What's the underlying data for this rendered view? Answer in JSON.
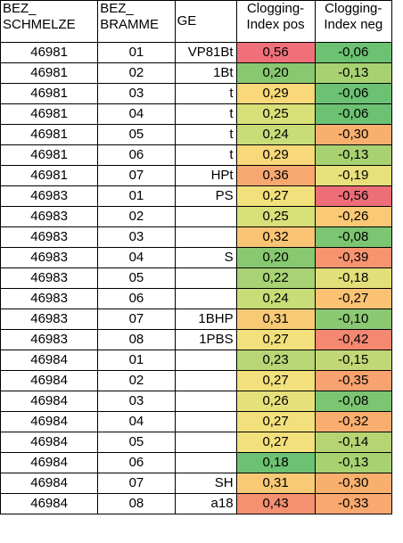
{
  "headers": {
    "schmelze": [
      "BEZ_",
      "SCHMELZE"
    ],
    "bramme": [
      "BEZ_",
      "BRAMME"
    ],
    "ge": "GE",
    "pos": [
      "Clogging-",
      "Index pos"
    ],
    "neg": [
      "Clogging-",
      "Index neg"
    ]
  },
  "rows": [
    {
      "schmelze": "46981",
      "bramme": "01",
      "ge": "VP81Bt",
      "pos": "0,56",
      "neg": "-0,06",
      "pos_color": "#f0707a",
      "neg_color": "#6cc172"
    },
    {
      "schmelze": "46981",
      "bramme": "02",
      "ge": "1Bt",
      "pos": "0,20",
      "neg": "-0,13",
      "pos_color": "#88c870",
      "neg_color": "#a8d272"
    },
    {
      "schmelze": "46981",
      "bramme": "03",
      "ge": "t",
      "pos": "0,29",
      "neg": "-0,06",
      "pos_color": "#f8d878",
      "neg_color": "#6cc172"
    },
    {
      "schmelze": "46981",
      "bramme": "04",
      "ge": "t",
      "pos": "0,25",
      "neg": "-0,06",
      "pos_color": "#d8e07a",
      "neg_color": "#6cc172"
    },
    {
      "schmelze": "46981",
      "bramme": "05",
      "ge": "t",
      "pos": "0,24",
      "neg": "-0,30",
      "pos_color": "#c8dc78",
      "neg_color": "#f9b06e"
    },
    {
      "schmelze": "46981",
      "bramme": "06",
      "ge": "t",
      "pos": "0,29",
      "neg": "-0,13",
      "pos_color": "#f8d878",
      "neg_color": "#a8d272"
    },
    {
      "schmelze": "46981",
      "bramme": "07",
      "ge": "HPt",
      "pos": "0,36",
      "neg": "-0,19",
      "pos_color": "#f7a870",
      "neg_color": "#e8e07a"
    },
    {
      "schmelze": "46983",
      "bramme": "01",
      "ge": "PS",
      "pos": "0,27",
      "neg": "-0,56",
      "pos_color": "#f2e07c",
      "neg_color": "#ee6e78"
    },
    {
      "schmelze": "46983",
      "bramme": "02",
      "ge": "",
      "pos": "0,25",
      "neg": "-0,26",
      "pos_color": "#d8e07a",
      "neg_color": "#fbc876"
    },
    {
      "schmelze": "46983",
      "bramme": "03",
      "ge": "",
      "pos": "0,32",
      "neg": "-0,08",
      "pos_color": "#f9c474",
      "neg_color": "#7cc572"
    },
    {
      "schmelze": "46983",
      "bramme": "04",
      "ge": "S",
      "pos": "0,20",
      "neg": "-0,39",
      "pos_color": "#88c870",
      "neg_color": "#f79470"
    },
    {
      "schmelze": "46983",
      "bramme": "05",
      "ge": "",
      "pos": "0,22",
      "neg": "-0,18",
      "pos_color": "#a8d274",
      "neg_color": "#e2df7a"
    },
    {
      "schmelze": "46983",
      "bramme": "06",
      "ge": "",
      "pos": "0,24",
      "neg": "-0,27",
      "pos_color": "#c8dc78",
      "neg_color": "#fbc274"
    },
    {
      "schmelze": "46983",
      "bramme": "07",
      "ge": "1BHP",
      "pos": "0,31",
      "neg": "-0,10",
      "pos_color": "#f9ca76",
      "neg_color": "#8ac872"
    },
    {
      "schmelze": "46983",
      "bramme": "08",
      "ge": "1PBS",
      "pos": "0,27",
      "neg": "-0,42",
      "pos_color": "#f2e07c",
      "neg_color": "#f48870"
    },
    {
      "schmelze": "46984",
      "bramme": "01",
      "ge": "",
      "pos": "0,23",
      "neg": "-0,15",
      "pos_color": "#b8d676",
      "neg_color": "#c2d876"
    },
    {
      "schmelze": "46984",
      "bramme": "02",
      "ge": "",
      "pos": "0,27",
      "neg": "-0,35",
      "pos_color": "#f2e07c",
      "neg_color": "#f8a270"
    },
    {
      "schmelze": "46984",
      "bramme": "03",
      "ge": "",
      "pos": "0,26",
      "neg": "-0,08",
      "pos_color": "#e6e07a",
      "neg_color": "#7cc572"
    },
    {
      "schmelze": "46984",
      "bramme": "04",
      "ge": "",
      "pos": "0,27",
      "neg": "-0,32",
      "pos_color": "#f2e07c",
      "neg_color": "#f9ae70"
    },
    {
      "schmelze": "46984",
      "bramme": "05",
      "ge": "",
      "pos": "0,27",
      "neg": "-0,14",
      "pos_color": "#f2e07c",
      "neg_color": "#b6d474"
    },
    {
      "schmelze": "46984",
      "bramme": "06",
      "ge": "",
      "pos": "0,18",
      "neg": "-0,13",
      "pos_color": "#6cc172",
      "neg_color": "#a8d272"
    },
    {
      "schmelze": "46984",
      "bramme": "07",
      "ge": "SH",
      "pos": "0,31",
      "neg": "-0,30",
      "pos_color": "#f9ca76",
      "neg_color": "#f9b06e"
    },
    {
      "schmelze": "46984",
      "bramme": "08",
      "ge": "a18",
      "pos": "0,43",
      "neg": "-0,33",
      "pos_color": "#f59070",
      "neg_color": "#f9a870"
    }
  ]
}
